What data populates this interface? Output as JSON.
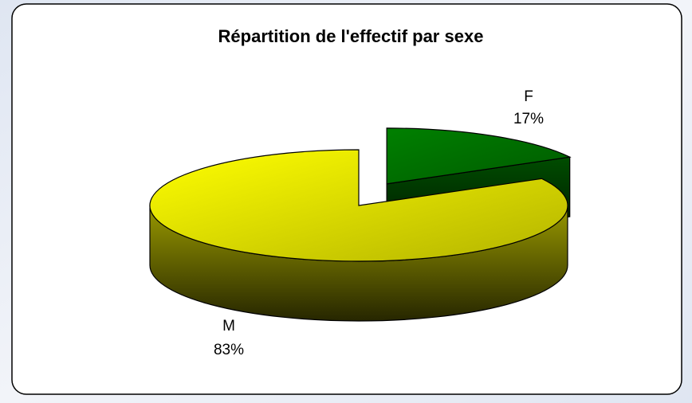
{
  "chart_data": {
    "type": "pie3d",
    "title": "Répartition de l'effectif par sexe",
    "categories": [
      "F",
      "M"
    ],
    "values": [
      17,
      83
    ],
    "value_labels": [
      "17%",
      "83%"
    ],
    "colors": [
      "#008000",
      "#ffff00"
    ]
  }
}
